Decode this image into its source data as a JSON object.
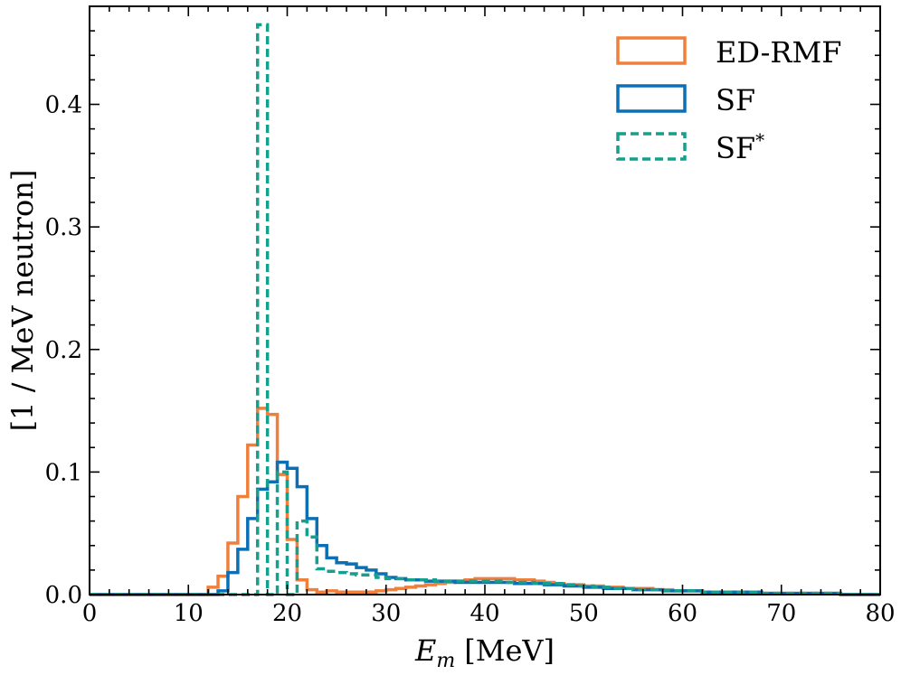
{
  "chart_data": {
    "type": "histogram",
    "xlabel_main": "E",
    "xlabel_sub": "m",
    "xlabel_unit": "[MeV]",
    "ylabel": "[1 / MeV neutron]",
    "xlim": [
      0,
      80
    ],
    "ylim": [
      0,
      0.48
    ],
    "xticks": [
      0,
      10,
      20,
      30,
      40,
      50,
      60,
      70,
      80
    ],
    "yticks": [
      0.0,
      0.1,
      0.2,
      0.3,
      0.4
    ],
    "xtick_labels": [
      "0",
      "10",
      "20",
      "30",
      "40",
      "50",
      "60",
      "70",
      "80"
    ],
    "ytick_labels": [
      "0.0",
      "0.1",
      "0.2",
      "0.3",
      "0.4"
    ],
    "bin_width": 1,
    "legend_position": "upper-right",
    "series": [
      {
        "name": "ED-RMF",
        "label_main": "ED-RMF",
        "label_sup": "",
        "color": "#f07f3c",
        "dashed": false,
        "values": [
          0,
          0,
          0,
          0,
          0,
          0,
          0,
          0,
          0,
          0,
          0,
          0,
          0.006,
          0.015,
          0.042,
          0.08,
          0.122,
          0.152,
          0.147,
          0.098,
          0.045,
          0.012,
          0.004,
          0.002,
          0.003,
          0.002,
          0.002,
          0.002,
          0.002,
          0.003,
          0.004,
          0.005,
          0.006,
          0.007,
          0.008,
          0.009,
          0.01,
          0.011,
          0.012,
          0.013,
          0.013,
          0.013,
          0.013,
          0.012,
          0.012,
          0.011,
          0.01,
          0.009,
          0.008,
          0.008,
          0.007,
          0.007,
          0.006,
          0.006,
          0.005,
          0.005,
          0.005,
          0.004,
          0.004,
          0.003,
          0.003,
          0.003,
          0.002,
          0.002,
          0.002,
          0.002,
          0.001,
          0.001,
          0.001,
          0.001,
          0.001,
          0.001,
          0.001,
          0.001,
          0.001,
          0.001,
          0,
          0,
          0,
          0
        ]
      },
      {
        "name": "SF",
        "label_main": "SF",
        "label_sup": "",
        "color": "#0a6fb5",
        "dashed": false,
        "values": [
          0,
          0,
          0,
          0,
          0,
          0,
          0,
          0,
          0,
          0,
          0,
          0,
          0,
          0.003,
          0.018,
          0.037,
          0.062,
          0.086,
          0.092,
          0.108,
          0.103,
          0.088,
          0.062,
          0.04,
          0.03,
          0.026,
          0.025,
          0.022,
          0.02,
          0.017,
          0.014,
          0.013,
          0.012,
          0.012,
          0.011,
          0.011,
          0.011,
          0.01,
          0.01,
          0.01,
          0.01,
          0.01,
          0.01,
          0.009,
          0.009,
          0.009,
          0.008,
          0.008,
          0.007,
          0.007,
          0.006,
          0.006,
          0.005,
          0.005,
          0.005,
          0.004,
          0.004,
          0.004,
          0.003,
          0.003,
          0.003,
          0.003,
          0.002,
          0.002,
          0.002,
          0.002,
          0.002,
          0.002,
          0.001,
          0.001,
          0.001,
          0.001,
          0.001,
          0.001,
          0.001,
          0.001,
          0,
          0,
          0,
          0
        ]
      },
      {
        "name": "SF*",
        "label_main": "SF",
        "label_sup": "*",
        "color": "#14a08c",
        "dashed": true,
        "values": [
          0,
          0,
          0,
          0,
          0,
          0,
          0,
          0,
          0,
          0,
          0,
          0,
          0,
          0,
          0,
          0,
          0,
          0.465,
          0,
          0.1,
          0,
          0.06,
          0.047,
          0.021,
          0.019,
          0.018,
          0.017,
          0.016,
          0.016,
          0.014,
          0.013,
          0.013,
          0.012,
          0.012,
          0.012,
          0.011,
          0.011,
          0.011,
          0.011,
          0.011,
          0.011,
          0.011,
          0.01,
          0.01,
          0.01,
          0.009,
          0.009,
          0.009,
          0.008,
          0.007,
          0.007,
          0.006,
          0.006,
          0.005,
          0.005,
          0.004,
          0.004,
          0.004,
          0.003,
          0.003,
          0.003,
          0.003,
          0.002,
          0.002,
          0.002,
          0.002,
          0.002,
          0.002,
          0.001,
          0.001,
          0.001,
          0.001,
          0.001,
          0.001,
          0.001,
          0.001,
          0,
          0,
          0,
          0
        ]
      }
    ]
  }
}
